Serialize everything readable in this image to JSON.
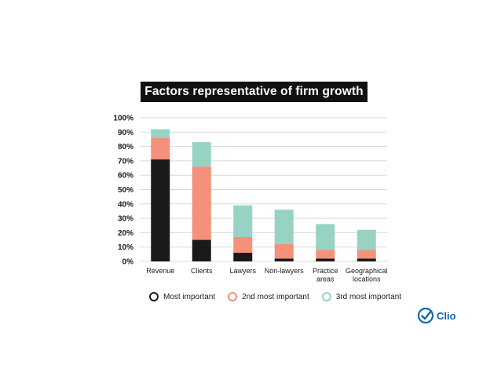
{
  "chart_data": {
    "type": "bar",
    "stacked": true,
    "title": "Factors representative of firm growth",
    "categories": [
      [
        "Revenue"
      ],
      [
        "Clients"
      ],
      [
        "Lawyers"
      ],
      [
        "Non-lawyers"
      ],
      [
        "Practice",
        "areas"
      ],
      [
        "Geographical",
        "locations"
      ]
    ],
    "series": [
      {
        "name": "Most important",
        "color": "#1a1a1a",
        "values": [
          71,
          15,
          6,
          2,
          2,
          2
        ]
      },
      {
        "name": "2nd most important",
        "color": "#f5907a",
        "values": [
          15,
          51,
          11,
          10,
          6,
          6
        ]
      },
      {
        "name": "3rd most important",
        "color": "#96d3c3",
        "values": [
          6,
          17,
          22,
          24,
          18,
          14
        ]
      }
    ],
    "ylim": [
      0,
      100
    ],
    "yticks": [
      "0%",
      "10%",
      "20%",
      "30%",
      "40%",
      "50%",
      "60%",
      "70%",
      "80%",
      "90%",
      "100%"
    ],
    "grid": true,
    "legend_position": "bottom"
  },
  "brand": {
    "name": "Clio",
    "color": "#0b67b2"
  }
}
